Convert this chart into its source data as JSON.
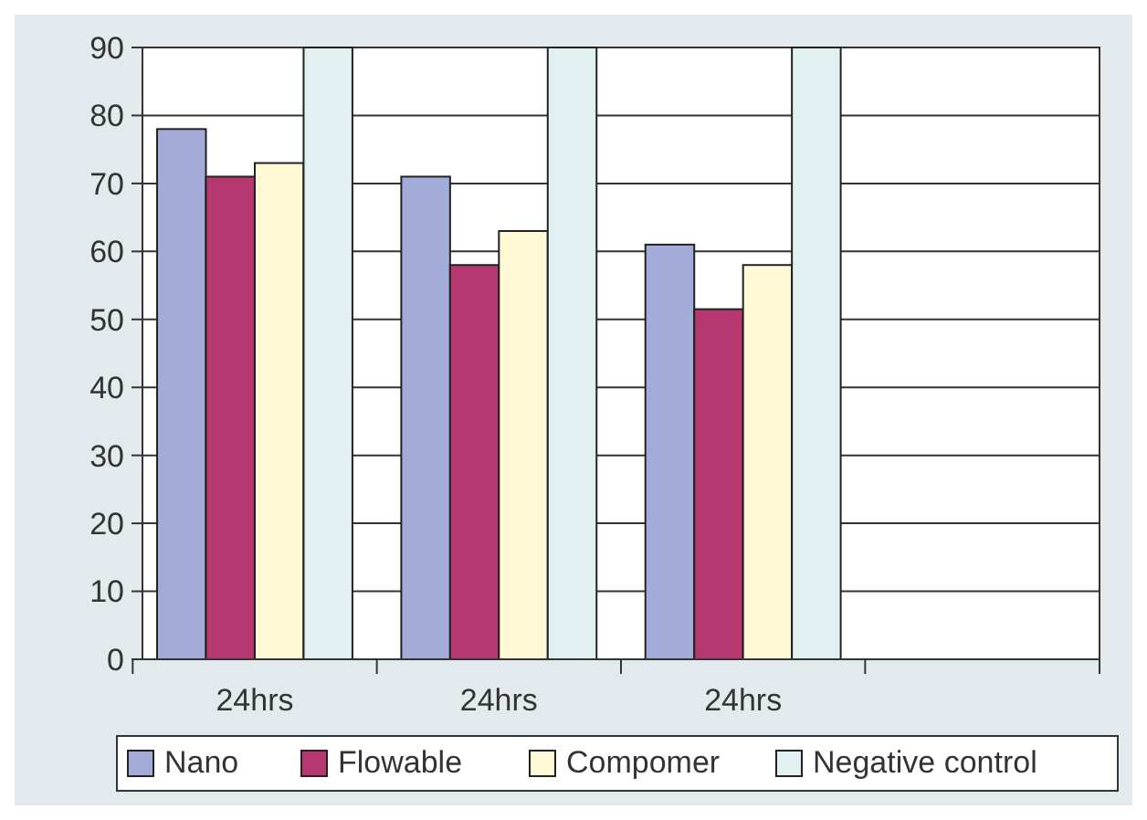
{
  "chart_data": {
    "type": "bar",
    "categories": [
      "24hrs",
      "24hrs",
      "24hrs",
      null
    ],
    "series": [
      {
        "name": "Nano",
        "color": "#a3acd8",
        "values": [
          78,
          71,
          61,
          null
        ]
      },
      {
        "name": "Flowable",
        "color": "#b73771",
        "values": [
          71,
          58,
          51.5,
          null
        ]
      },
      {
        "name": "Compomer",
        "color": "#fff9d6",
        "values": [
          73,
          63,
          58,
          null
        ]
      },
      {
        "name": "Negative control",
        "color": "#e1f1f1",
        "values": [
          90,
          90,
          90,
          null
        ]
      }
    ],
    "ylim": [
      0,
      90
    ],
    "yticks": [
      0,
      10,
      20,
      30,
      40,
      50,
      60,
      70,
      80,
      90
    ],
    "grid": "y",
    "legend": "bottom"
  }
}
